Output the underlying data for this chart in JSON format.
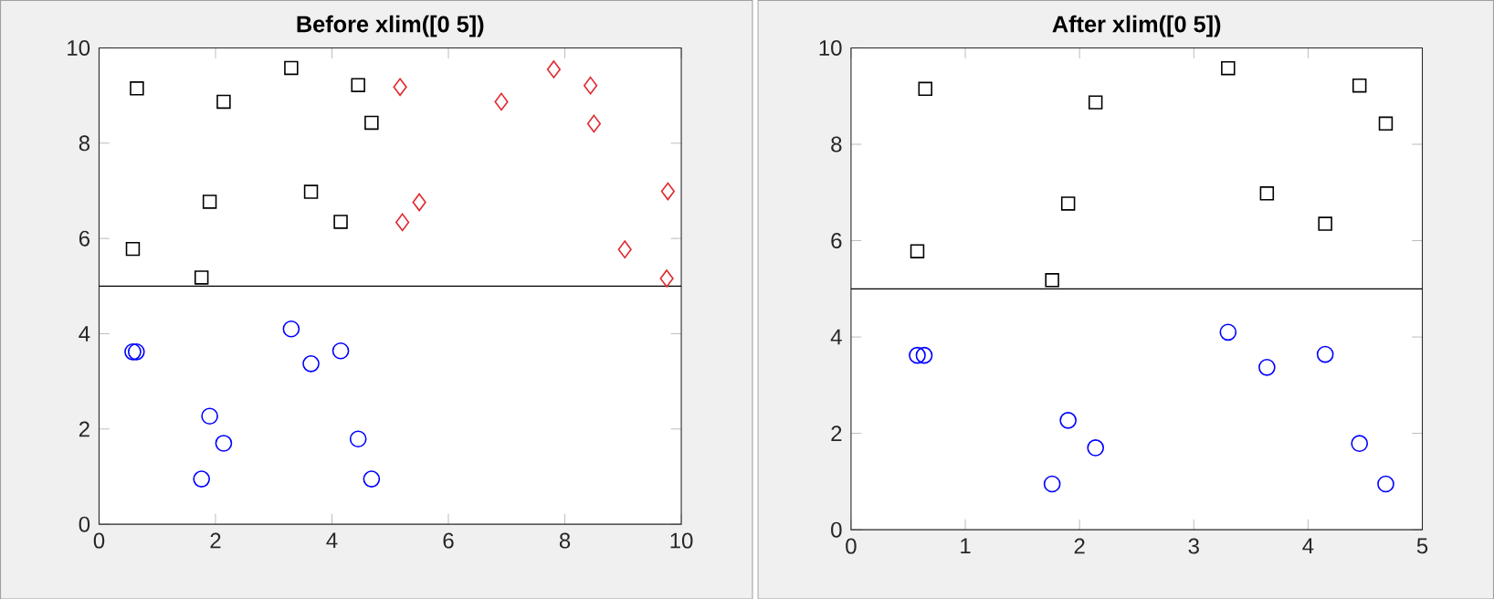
{
  "chart_data": [
    {
      "type": "scatter",
      "title": "Before xlim([0 5])",
      "xlim": [
        0,
        10
      ],
      "ylim": [
        0,
        10
      ],
      "xticks": [
        0,
        2,
        4,
        6,
        8,
        10
      ],
      "yticks": [
        0,
        2,
        4,
        6,
        8,
        10
      ],
      "ref_lines": [
        {
          "axis": "y",
          "value": 5,
          "color": "#000000"
        }
      ],
      "series": [
        {
          "color": "#000000",
          "marker": "square",
          "x": [
            0.65,
            0.58,
            1.9,
            1.76,
            2.14,
            3.3,
            3.64,
            4.15,
            4.45,
            4.68
          ],
          "values": [
            9.15,
            5.78,
            6.77,
            5.18,
            8.87,
            9.58,
            6.98,
            6.35,
            9.22,
            8.43
          ]
        },
        {
          "color": "#0000ff",
          "marker": "circle",
          "x": [
            0.58,
            0.64,
            1.9,
            2.14,
            1.76,
            3.3,
            3.64,
            4.15,
            4.45,
            4.68
          ],
          "values": [
            3.62,
            3.62,
            2.27,
            1.7,
            0.95,
            4.1,
            3.37,
            3.64,
            1.79,
            0.95
          ]
        },
        {
          "color": "#e0282e",
          "marker": "diamond",
          "x": [
            5.17,
            6.91,
            7.81,
            8.44,
            8.5,
            5.21,
            5.5,
            9.03,
            9.77,
            9.75
          ],
          "values": [
            9.18,
            8.87,
            9.55,
            9.21,
            8.41,
            6.34,
            6.76,
            5.77,
            6.99,
            5.16
          ]
        }
      ]
    },
    {
      "type": "scatter",
      "title": "After xlim([0 5])",
      "xlim": [
        0,
        5
      ],
      "ylim": [
        0,
        10
      ],
      "xticks": [
        0,
        1,
        2,
        3,
        4,
        5
      ],
      "yticks": [
        0,
        2,
        4,
        6,
        8,
        10
      ],
      "ref_lines": [
        {
          "axis": "y",
          "value": 5,
          "color": "#000000"
        }
      ],
      "series": [
        {
          "color": "#000000",
          "marker": "square",
          "x": [
            0.65,
            0.58,
            1.9,
            1.76,
            2.14,
            3.3,
            3.64,
            4.15,
            4.45,
            4.68
          ],
          "values": [
            9.15,
            5.78,
            6.77,
            5.18,
            8.87,
            9.58,
            6.98,
            6.35,
            9.22,
            8.43
          ]
        },
        {
          "color": "#0000ff",
          "marker": "circle",
          "x": [
            0.58,
            0.64,
            1.9,
            2.14,
            1.76,
            3.3,
            3.64,
            4.15,
            4.45,
            4.68
          ],
          "values": [
            3.62,
            3.62,
            2.27,
            1.7,
            0.95,
            4.1,
            3.37,
            3.64,
            1.79,
            0.95
          ]
        }
      ]
    }
  ]
}
